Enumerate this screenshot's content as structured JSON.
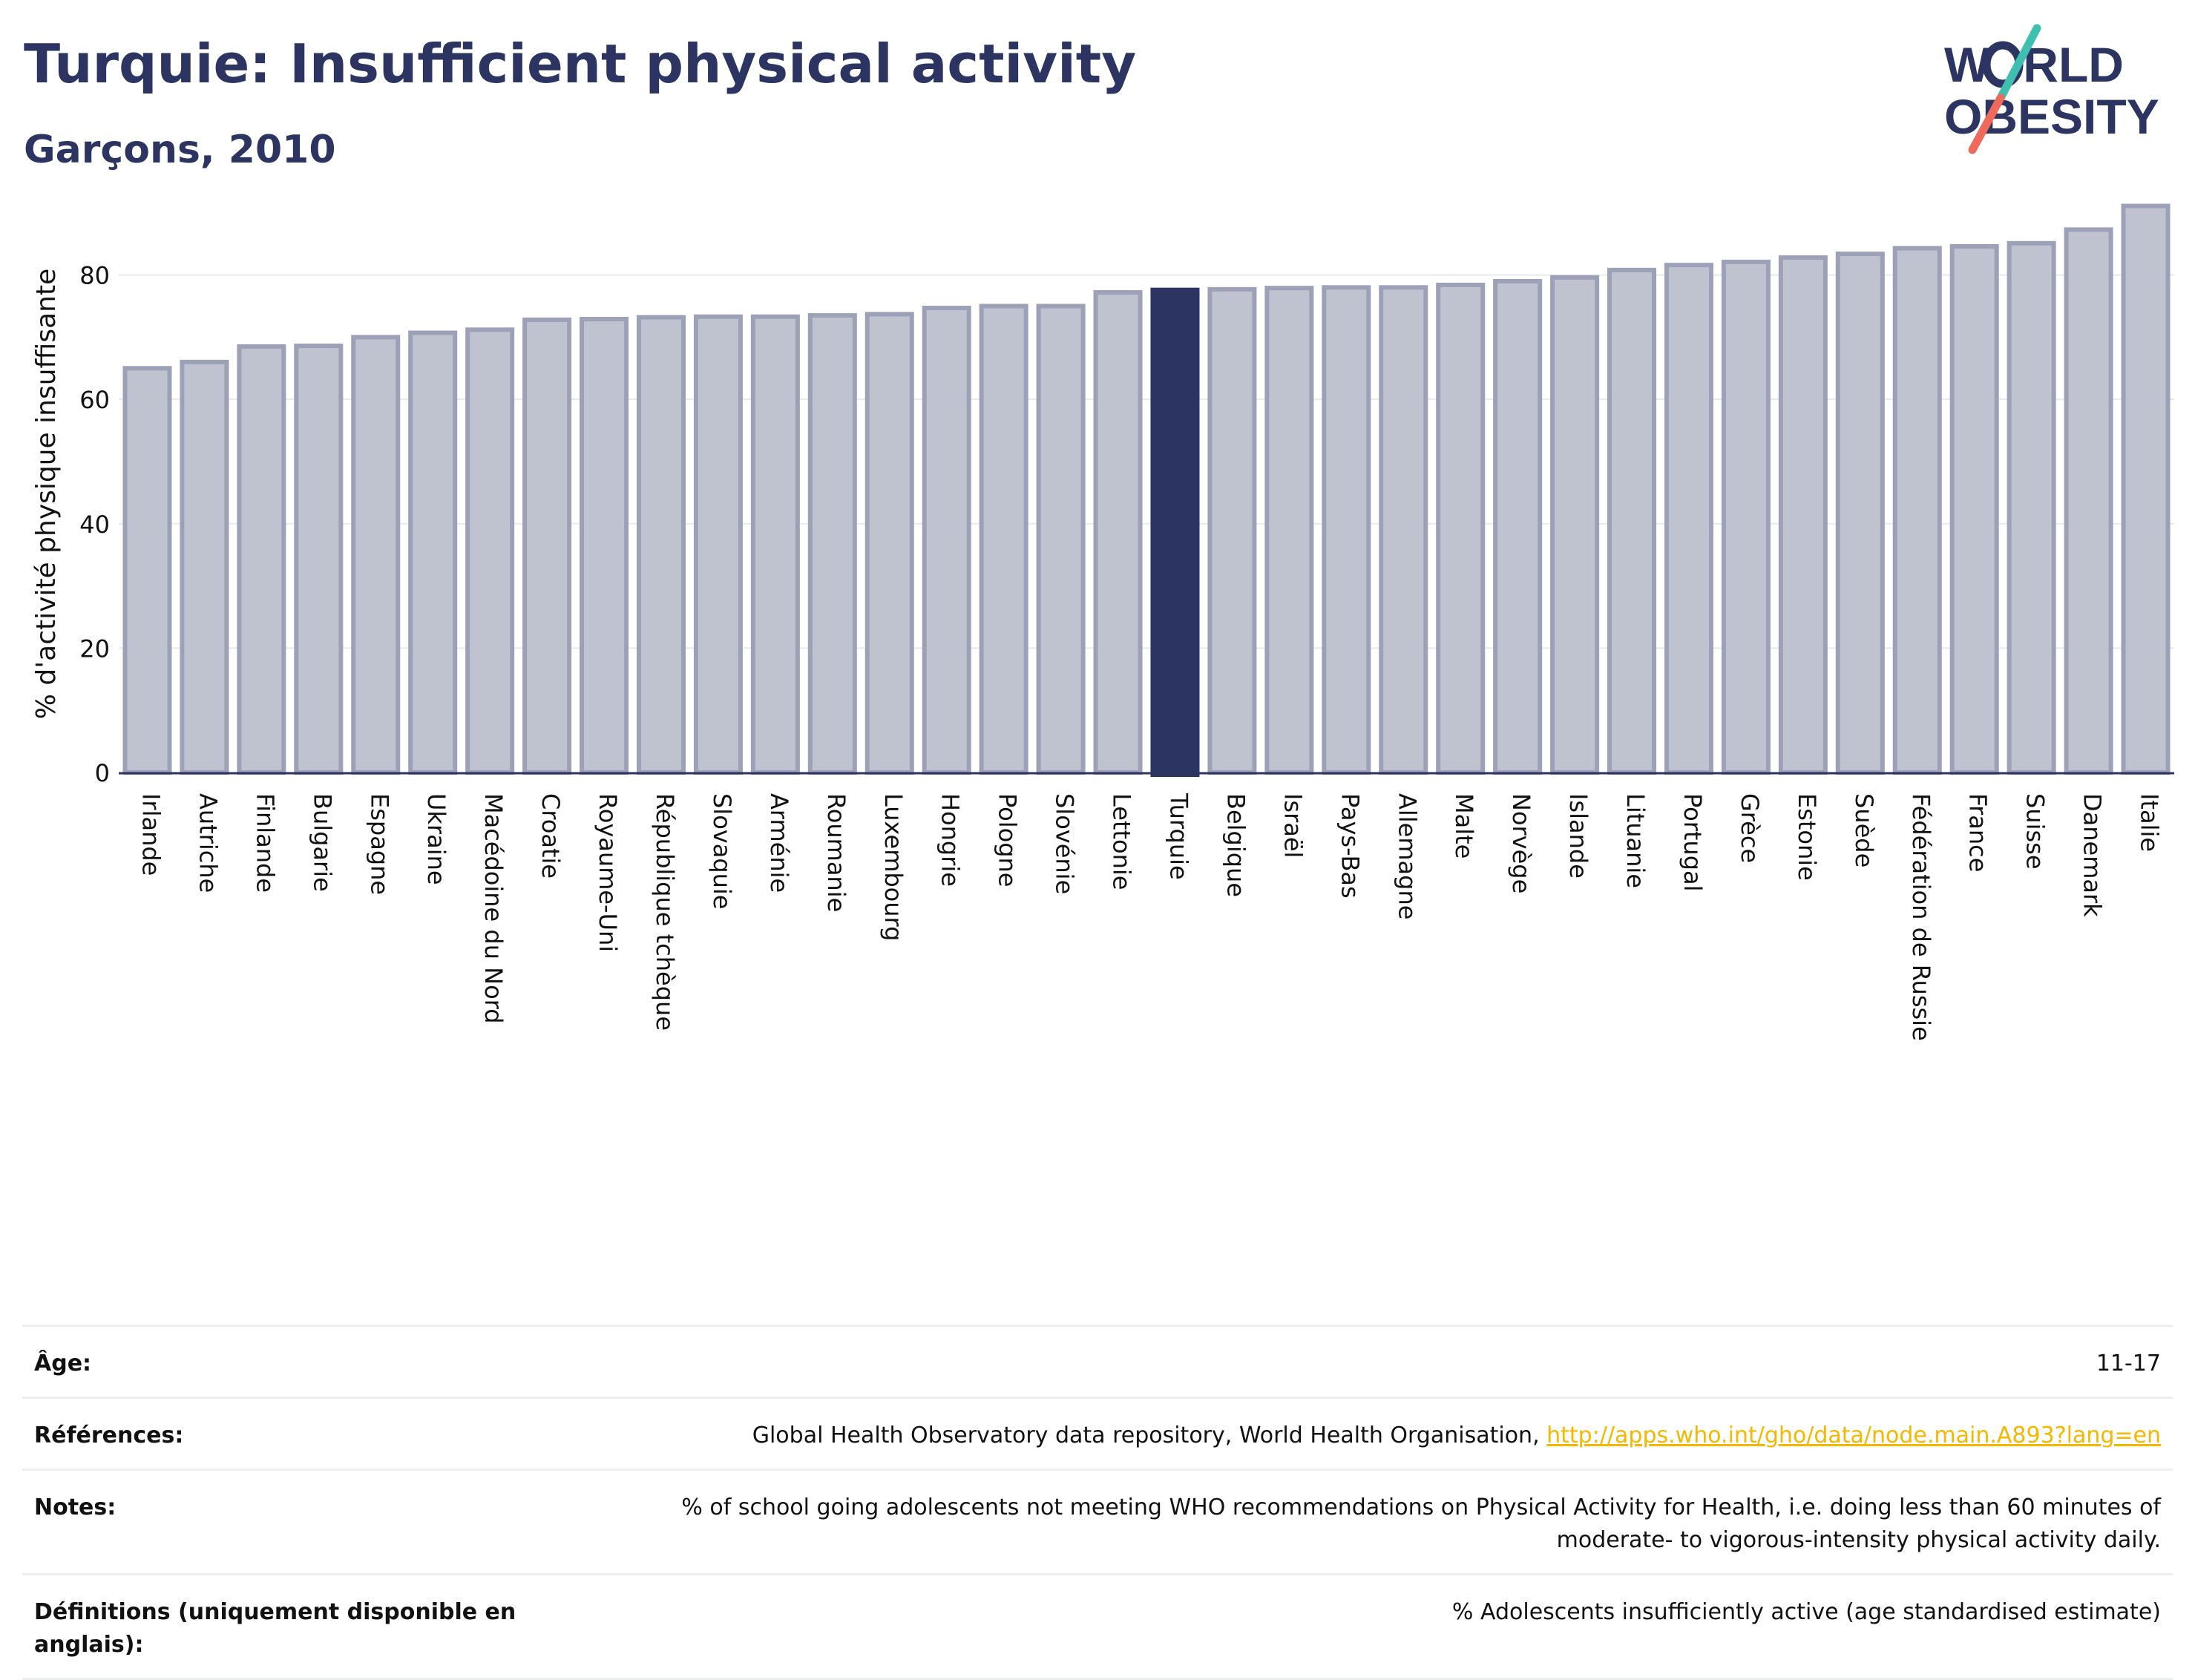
{
  "header": {
    "title": "Turquie: Insufficient physical activity",
    "subtitle": "Garçons, 2010"
  },
  "logo": {
    "line1_a": "W",
    "line1_b": "RLD",
    "line2_a": "O",
    "line2_b": "BESITY",
    "icon": "world-obesity-slash-logo"
  },
  "colors": {
    "bar": "#bfc3d0",
    "bar_border": "#9ca1b8",
    "highlight": "#2c3561",
    "text": "#2c3561",
    "link": "#f5b700"
  },
  "chart_data": {
    "type": "bar",
    "ylabel": "% d'activité physique insuffisante",
    "ylim": [
      0,
      92
    ],
    "yticks": [
      0,
      20,
      40,
      60,
      80
    ],
    "grid": true,
    "highlight": "Turquie",
    "categories": [
      "Irlande",
      "Autriche",
      "Finlande",
      "Bulgarie",
      "Espagne",
      "Ukraine",
      "Macédoine du Nord",
      "Croatie",
      "Royaume-Uni",
      "République tchèque",
      "Slovaquie",
      "Arménie",
      "Roumanie",
      "Luxembourg",
      "Hongrie",
      "Pologne",
      "Slovénie",
      "Lettonie",
      "Turquie",
      "Belgique",
      "Israël",
      "Pays-Bas",
      "Allemagne",
      "Malte",
      "Norvège",
      "Islande",
      "Lituanie",
      "Portugal",
      "Grèce",
      "Estonie",
      "Suède",
      "Fédération de Russie",
      "France",
      "Suisse",
      "Danemark",
      "Italie"
    ],
    "values": [
      65.0,
      66.0,
      68.5,
      68.6,
      70.0,
      70.7,
      71.2,
      72.8,
      72.9,
      73.2,
      73.3,
      73.3,
      73.5,
      73.7,
      74.7,
      75.0,
      75.0,
      77.2,
      77.6,
      77.7,
      77.9,
      78.0,
      78.0,
      78.4,
      79.0,
      79.6,
      80.8,
      81.6,
      82.1,
      82.8,
      83.4,
      84.3,
      84.6,
      85.1,
      87.3,
      91.1
    ]
  },
  "info": [
    {
      "label": "Âge:",
      "value": "11-17"
    },
    {
      "label": "Références:",
      "value": "Global Health Observatory data repository, World Health Organisation, ",
      "link": "http://apps.who.int/gho/data/node.main.A893?lang=en"
    },
    {
      "label": "Notes:",
      "value": "% of school going adolescents not meeting WHO recommendations on Physical Activity for Health, i.e. doing less than 60 minutes of moderate- to vigorous-intensity physical activity daily."
    },
    {
      "label": "Définitions (uniquement disponible en anglais):",
      "value": "% Adolescents insufficiently active (age standardised estimate)"
    }
  ]
}
